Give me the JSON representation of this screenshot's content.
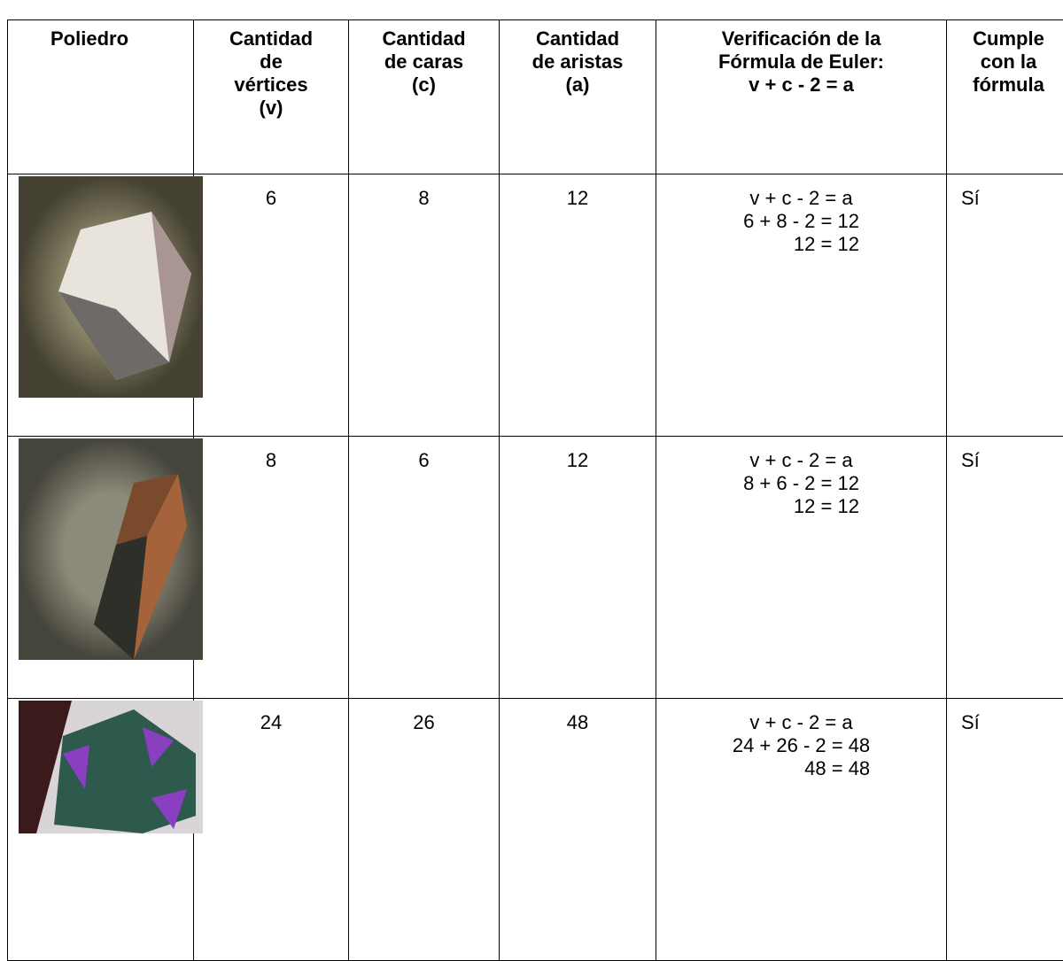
{
  "table": {
    "headers": [
      [
        "Poliedro"
      ],
      [
        "Cantidad",
        "de",
        "vértices",
        "(v)"
      ],
      [
        "Cantidad",
        "de   caras",
        "(c)"
      ],
      [
        "Cantidad",
        "de aristas",
        "(a)"
      ],
      [
        "Verificación de la",
        "Fórmula de Euler:",
        "v + c - 2 = a"
      ],
      [
        "Cumple",
        "con la",
        "fórmula"
      ]
    ],
    "rows": [
      {
        "vertices": "6",
        "caras": "8",
        "aristas": "12",
        "formula": [
          "v + c - 2 = a",
          "6 + 8 - 2 = 12",
          "12 = 12"
        ],
        "cumple": "Sí"
      },
      {
        "vertices": "8",
        "caras": "6",
        "aristas": "12",
        "formula": [
          "v + c - 2 = a",
          "8 + 6 - 2 = 12",
          "12 = 12"
        ],
        "cumple": "Sí"
      },
      {
        "vertices": "24",
        "caras": "26",
        "aristas": "48",
        "formula": [
          "v + c - 2 = a",
          "24 + 26 - 2 = 48",
          "48 = 48"
        ],
        "cumple": "Sí"
      }
    ]
  }
}
